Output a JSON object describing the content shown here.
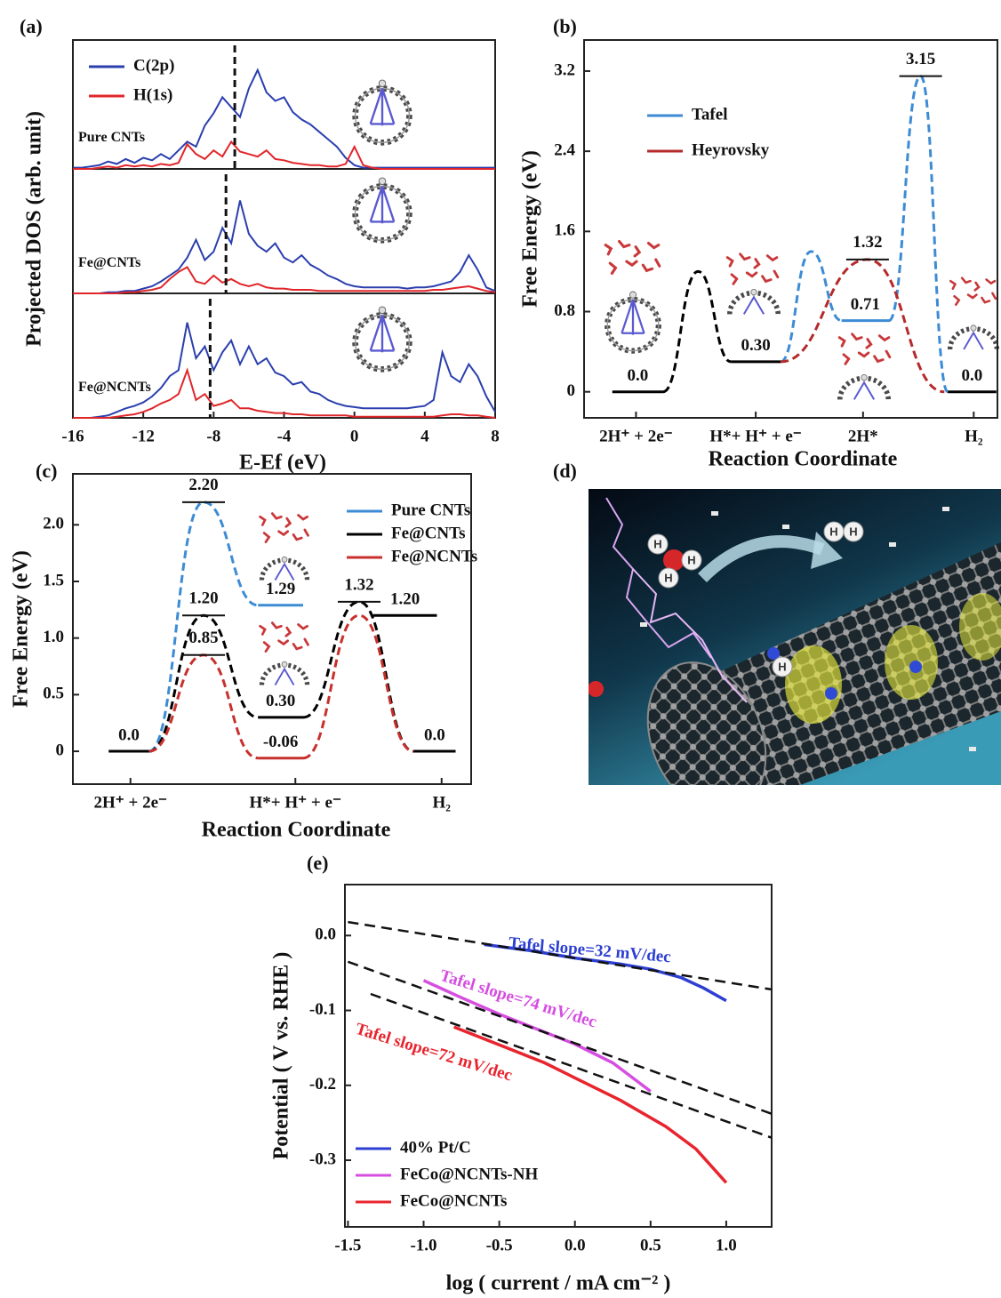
{
  "chart_data": [
    {
      "type": "dos",
      "panel": "(a)",
      "xlabel": "E-Ef (eV)",
      "ylabel": "Projected DOS (arb. unit)",
      "xlim": [
        -16,
        8
      ],
      "xticks": [
        -16,
        -12,
        -8,
        -4,
        0,
        4,
        8
      ],
      "ylim": [
        0,
        10
      ],
      "series": [
        {
          "name": "C(2p)",
          "color": "#2b3fae"
        },
        {
          "name": "H(1s)",
          "color": "#e0262a"
        }
      ],
      "x": [
        -16,
        -15.5,
        -15,
        -14.5,
        -14,
        -13.5,
        -13,
        -12.5,
        -12,
        -11.5,
        -11,
        -10.5,
        -10,
        -9.5,
        -9,
        -8.5,
        -8,
        -7.5,
        -7,
        -6.5,
        -6,
        -5.5,
        -5,
        -4.5,
        -4,
        -3.5,
        -3,
        -2.5,
        -2,
        -1.5,
        -1,
        -0.5,
        0,
        0.5,
        1,
        1.5,
        2,
        2.5,
        3,
        3.5,
        4,
        4.5,
        5,
        5.5,
        6,
        6.5,
        7,
        7.5,
        8
      ],
      "panels": [
        {
          "label": "Pure CNTs",
          "fermi": -6.8,
          "values": [
            [
              0.1,
              0.1,
              0.2,
              0.3,
              0.6,
              0.4,
              0.8,
              0.5,
              0.9,
              0.7,
              1.2,
              0.8,
              1.5,
              2.2,
              1.8,
              3.5,
              4.5,
              5.8,
              5.0,
              4.2,
              6.5,
              8.0,
              6.2,
              5.5,
              5.8,
              4.6,
              4.0,
              3.6,
              3.0,
              2.4,
              1.8,
              0.9,
              0.3,
              0.1,
              0.1,
              0.1,
              0.1,
              0.1,
              0.1,
              0.1,
              0.1,
              0.1,
              0.1,
              0.1,
              0.1,
              0.1,
              0.1,
              0.1,
              0.1
            ],
            [
              0,
              0,
              0,
              0.1,
              0.2,
              0.1,
              0.3,
              0.2,
              0.3,
              0.2,
              0.4,
              0.3,
              0.5,
              2.0,
              1.2,
              0.8,
              1.5,
              1.0,
              2.2,
              1.4,
              1.2,
              1.0,
              1.5,
              0.8,
              0.7,
              0.5,
              0.4,
              0.3,
              0.3,
              0.2,
              0.2,
              0.4,
              1.8,
              0.3,
              0.1,
              0,
              0,
              0,
              0,
              0,
              0,
              0,
              0,
              0,
              0,
              0,
              0,
              0,
              0
            ]
          ]
        },
        {
          "label": "Fe@CNTs",
          "fermi": -7.3,
          "values": [
            [
              0,
              0,
              0,
              0,
              0.1,
              0.1,
              0.2,
              0.2,
              0.4,
              0.6,
              1.0,
              1.5,
              2.0,
              3.0,
              4.5,
              2.8,
              3.5,
              5.5,
              4.2,
              7.8,
              5.0,
              4.0,
              3.5,
              4.2,
              3.0,
              2.6,
              3.2,
              2.4,
              2.0,
              1.5,
              1.2,
              0.8,
              0.6,
              0.5,
              0.5,
              0.5,
              0.5,
              0.5,
              0.4,
              0.5,
              0.5,
              0.6,
              0.8,
              1.0,
              1.8,
              3.2,
              2.0,
              0.5,
              0.2
            ],
            [
              0,
              0,
              0,
              0,
              0,
              0,
              0.1,
              0.1,
              0.2,
              0.3,
              0.5,
              1.2,
              1.8,
              2.2,
              1.0,
              0.8,
              1.5,
              0.9,
              1.2,
              0.8,
              0.6,
              0.8,
              0.5,
              0.4,
              0.4,
              0.3,
              0.3,
              0.3,
              0.2,
              0.2,
              0.2,
              0.2,
              0.2,
              0.2,
              0.2,
              0.2,
              0.2,
              0.2,
              0.2,
              0.2,
              0.2,
              0.3,
              0.3,
              0.4,
              0.5,
              0.6,
              0.4,
              0.2,
              0.1
            ]
          ]
        },
        {
          "label": "Fe@NCNTs",
          "fermi": -8.2,
          "values": [
            [
              0,
              0,
              0,
              0.1,
              0.2,
              0.5,
              0.8,
              1.0,
              1.3,
              1.8,
              2.5,
              3.5,
              4.0,
              8.0,
              5.0,
              6.0,
              4.0,
              5.5,
              6.5,
              4.5,
              6.0,
              4.5,
              5.0,
              3.8,
              3.5,
              2.8,
              3.0,
              2.2,
              2.0,
              1.5,
              1.2,
              1.0,
              0.9,
              0.8,
              0.8,
              0.8,
              0.8,
              0.8,
              0.8,
              0.9,
              1.0,
              1.5,
              5.5,
              3.5,
              3.0,
              4.5,
              3.5,
              1.8,
              0.5
            ],
            [
              0,
              0,
              0,
              0,
              0,
              0.1,
              0.2,
              0.3,
              0.5,
              0.8,
              1.2,
              1.5,
              2.0,
              4.0,
              1.5,
              2.0,
              1.0,
              1.2,
              1.5,
              0.8,
              0.8,
              0.6,
              0.5,
              0.4,
              0.4,
              0.3,
              0.3,
              0.2,
              0.2,
              0.2,
              0.2,
              0.2,
              0.1,
              0.1,
              0.1,
              0.1,
              0.1,
              0.1,
              0.1,
              0.1,
              0.1,
              0.1,
              0.2,
              0.3,
              0.3,
              0.2,
              0.2,
              0.1,
              0
            ]
          ]
        }
      ]
    },
    {
      "type": "energy",
      "panel": "(b)",
      "xlabel": "Reaction Coordinate",
      "ylabel": "Free Energy (eV)",
      "xlim": [
        -0.46,
        3.2
      ],
      "ylim": [
        -0.26,
        3.51
      ],
      "yticks": [
        0,
        0.8,
        1.6,
        2.4,
        3.2
      ],
      "xticks": [
        {
          "value": 0,
          "label": "2H⁺ + 2e⁻"
        },
        {
          "value": 1.06,
          "label": "H*+ H⁺ + e⁻"
        },
        {
          "value": 2.01,
          "label": "2H*"
        },
        {
          "value": 2.99,
          "label": "H₂"
        }
      ],
      "levels": {
        "x": [
          [
            -0.21,
            0.24
          ],
          [
            0.84,
            1.28
          ],
          [
            1.82,
            2.24
          ],
          [
            2.76,
            3.19
          ]
        ],
        "values": [
          0,
          0.3,
          0.71,
          0
        ],
        "value_labels": [
          "0.0",
          "0.30",
          "0.71",
          "0.0"
        ],
        "colors": [
          "#000000",
          "#000000",
          "#3d8bd4",
          "#000000"
        ]
      },
      "series": [
        {
          "color": "#000000",
          "x": [
            0.24,
            0.55,
            0.84
          ],
          "values": [
            0,
            1.2,
            0.3
          ]
        },
        {
          "name": "Tafel",
          "color": "#3d8bd4",
          "x": [
            1.28,
            1.55,
            1.82,
            null,
            2.24,
            2.52,
            2.76
          ],
          "values": [
            0.3,
            1.4,
            0.71,
            null,
            0.71,
            3.15,
            0
          ],
          "value_labels": [
            null,
            null,
            null,
            null,
            null,
            "3.15",
            null
          ]
        },
        {
          "name": "Heyrovsky",
          "color": "#b52a2a",
          "x": [
            1.28,
            2.05,
            2.73
          ],
          "values": [
            0.3,
            1.32,
            0
          ],
          "value_labels": [
            null,
            "1.32",
            null
          ]
        }
      ]
    },
    {
      "type": "energy",
      "panel": "(c)",
      "xlabel": "Reaction Coordinate",
      "ylabel": "Free Energy (eV)",
      "xlim": [
        -0.37,
        2.19
      ],
      "ylim": [
        -0.29,
        2.45
      ],
      "yticks": [
        0,
        0.5,
        {
          "value": 1,
          "label": "1.0"
        },
        1.5,
        {
          "value": 2,
          "label": "2.0"
        }
      ],
      "xticks": [
        {
          "value": 0,
          "label": "2H⁺ + 2e⁻"
        },
        {
          "value": 1.06,
          "label": "H*+ H⁺ + e⁻"
        },
        {
          "value": 2,
          "label": "H₂"
        }
      ],
      "levels": {
        "x": [
          [
            -0.14,
            0.12
          ],
          [
            0.82,
            1.11
          ],
          [
            0.82,
            1.11
          ],
          [
            0.82,
            1.11
          ],
          [
            1.56,
            1.97
          ],
          [
            1.82,
            2.09
          ]
        ],
        "values": [
          0,
          1.29,
          0.3,
          -0.06,
          1.2,
          0
        ],
        "value_labels": [
          "0.0",
          "1.29",
          "0.30",
          "-0.06",
          "1.20",
          "0.0"
        ],
        "colors": [
          "#000000",
          "#3d8bd4",
          "#000000",
          "#c8302c",
          "#000000",
          "#000000"
        ]
      },
      "series": [
        {
          "name": "Pure CNTs",
          "color": "#3d8bd4",
          "x": [
            0.12,
            0.47,
            0.82
          ],
          "values": [
            0,
            2.2,
            1.29
          ],
          "value_labels": [
            null,
            "2.20",
            null
          ]
        },
        {
          "name": "Fe@CNTs",
          "color": "#000000",
          "x": [
            0.12,
            0.47,
            0.82,
            null,
            1.11,
            1.47,
            1.82
          ],
          "values": [
            0,
            1.2,
            0.3,
            null,
            0.3,
            1.32,
            0
          ],
          "value_labels": [
            null,
            "1.20",
            null,
            null,
            null,
            "1.32",
            null
          ]
        },
        {
          "name": "Fe@NCNTs",
          "color": "#c8302c",
          "x": [
            0.12,
            0.47,
            0.82,
            null,
            1.11,
            1.47,
            1.82
          ],
          "values": [
            0,
            0.85,
            -0.06,
            null,
            -0.06,
            1.2,
            0
          ],
          "value_labels": [
            null,
            "0.85",
            null,
            null,
            null,
            null,
            null
          ]
        }
      ]
    },
    {
      "type": "image",
      "panel": "(d)",
      "atom_labels": [
        "H",
        "H",
        "H",
        "H",
        "H",
        "H"
      ]
    },
    {
      "type": "line",
      "panel": "(e)",
      "xlabel": "log ( current / mA cm⁻² )",
      "ylabel": "Potential ( V vs. RHE )",
      "xlim": [
        -1.52,
        1.3
      ],
      "ylim": [
        -0.389,
        0.068
      ],
      "xticks": [
        -1.5,
        {
          "value": -1,
          "label": "-1.0"
        },
        -0.5,
        {
          "value": 0,
          "label": "0.0"
        },
        0.5,
        {
          "value": 1,
          "label": "1.0"
        }
      ],
      "yticks": [
        {
          "value": 0,
          "label": "0.0"
        },
        -0.1,
        -0.2,
        -0.3
      ],
      "legend": "lower left",
      "series": [
        {
          "name": "40% Pt/C",
          "color": "#2d3fd3",
          "annotation": "Tafel slope=32 mV/dec",
          "x": [
            -0.6,
            -0.3,
            0,
            0.3,
            0.5,
            0.7,
            0.85,
            1.0
          ],
          "values": [
            -0.012,
            -0.02,
            -0.03,
            -0.038,
            -0.045,
            -0.056,
            -0.07,
            -0.087
          ]
        },
        {
          "name": "FeCo@NCNTs-NH",
          "color": "#d54ee0",
          "annotation": "Tafel slope=74 mV/dec",
          "x": [
            -1.0,
            -0.75,
            -0.5,
            -0.25,
            0,
            0.25,
            0.5
          ],
          "values": [
            -0.06,
            -0.083,
            -0.105,
            -0.125,
            -0.145,
            -0.17,
            -0.208
          ]
        },
        {
          "name": "FeCo@NCNTs",
          "color": "#e8252e",
          "annotation": "Tafel slope=72 mV/dec",
          "x": [
            -0.8,
            -0.5,
            -0.2,
            0,
            0.3,
            0.6,
            0.8,
            1.0
          ],
          "values": [
            -0.122,
            -0.146,
            -0.17,
            -0.19,
            -0.22,
            -0.255,
            -0.285,
            -0.33
          ]
        },
        {
          "color": "#111111",
          "dashed": true,
          "x": [
            -1.5,
            1.3
          ],
          "values": [
            0.018,
            -0.072
          ]
        },
        {
          "color": "#111111",
          "dashed": true,
          "x": [
            -1.5,
            1.3
          ],
          "values": [
            -0.035,
            -0.238
          ]
        },
        {
          "color": "#111111",
          "dashed": true,
          "x": [
            -1.35,
            1.3
          ],
          "values": [
            -0.078,
            -0.27
          ]
        }
      ]
    }
  ]
}
